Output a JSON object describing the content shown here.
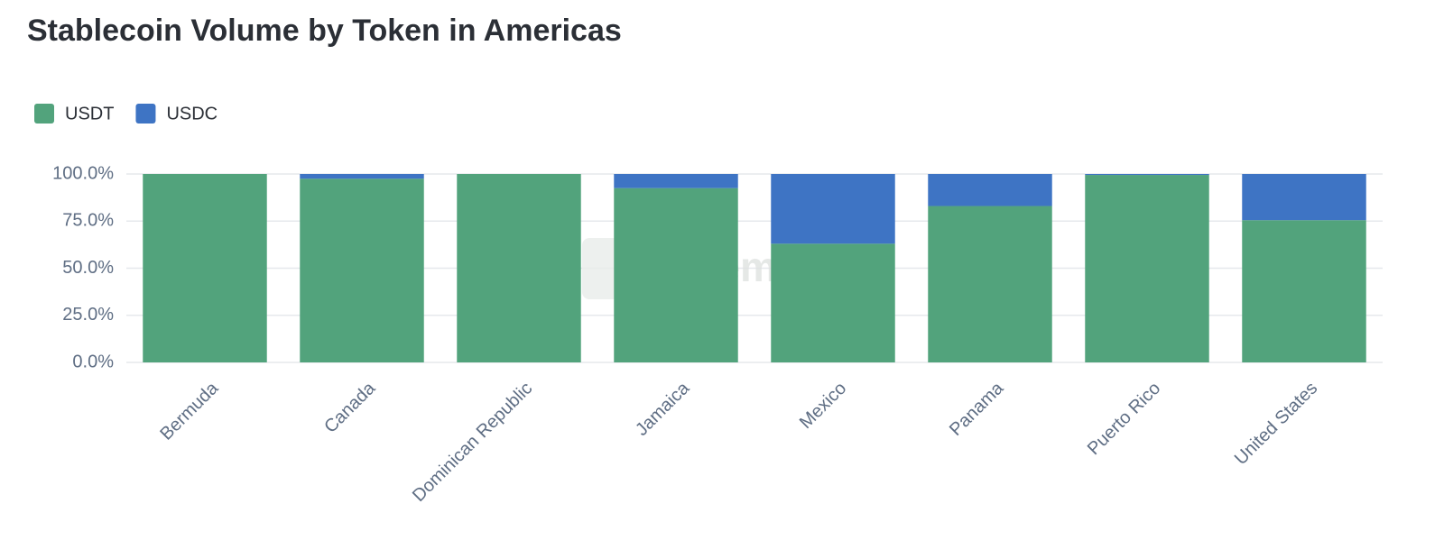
{
  "chart_data": {
    "type": "stacked_bar",
    "title": "Stablecoin Volume by Token in Americas",
    "watermark": "Artemis",
    "categories": [
      "Bermuda",
      "Canada",
      "Dominican Republic",
      "Jamaica",
      "Mexico",
      "Panama",
      "Puerto Rico",
      "United States"
    ],
    "series": [
      {
        "name": "USDT",
        "color": "#52a37c",
        "values": [
          100,
          97.5,
          100,
          92.5,
          63,
          83,
          99.5,
          75.5
        ]
      },
      {
        "name": "USDC",
        "color": "#3e74c4",
        "values": [
          0,
          2.5,
          0,
          7.5,
          37,
          17,
          0.5,
          24.5
        ]
      }
    ],
    "ylim": [
      0,
      100
    ],
    "yticks": [
      {
        "value": 0,
        "label": "0.0%"
      },
      {
        "value": 25,
        "label": "25.0%"
      },
      {
        "value": 50,
        "label": "50.0%"
      },
      {
        "value": 75,
        "label": "75.0%"
      },
      {
        "value": 100,
        "label": "100.0%"
      }
    ],
    "grid": true,
    "legend": "top-left"
  }
}
